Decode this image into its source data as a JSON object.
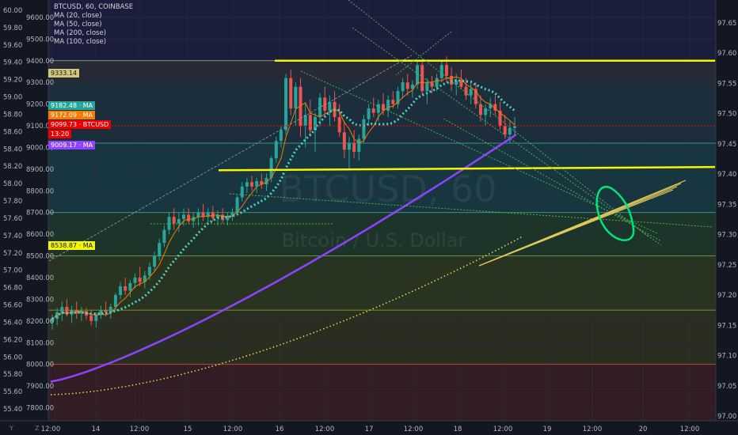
{
  "legend": {
    "title": "BTCUSD, 60, COINBASE",
    "ma_lines": [
      "MA (20, close)",
      "MA (50, close)",
      "MA (200, close)",
      "MA (100, close)"
    ]
  },
  "watermark": {
    "symbol": "BTCUSD, 60",
    "description": "Bitcoin / U.S. Dollar"
  },
  "colors": {
    "background": "#131722",
    "up_candle": "#26a69a",
    "down_candle": "#ef5350",
    "ma20": "#f57c00",
    "ma50": "#4dd0c8",
    "ma100": "#e8e04a",
    "ma200": "#8e44ff",
    "support_resistance": "#f5f50a",
    "trendlines": "#4caf50",
    "circle_annotation": "#00e676"
  },
  "tags": {
    "price_high": {
      "value": "9333.14",
      "color": "#d3c87a",
      "text_color": "#131722"
    },
    "ma50": {
      "value": "9182.48 · MA",
      "color": "#26a69a",
      "text_color": "#ffffff"
    },
    "ma20": {
      "value": "9172.09 · MA",
      "color": "#f57c00",
      "text_color": "#ffffff"
    },
    "last": {
      "value": "9099.73 · BTCUSD",
      "color": "#ef0000",
      "text_color": "#ffffff"
    },
    "countdown": {
      "value": "13:20",
      "color": "#ef0000",
      "text_color": "#ffffff"
    },
    "ma200": {
      "value": "9009.17 · MA",
      "color": "#8e44ff",
      "text_color": "#ffffff"
    },
    "ma100": {
      "value": "8538.87 · MA",
      "color": "#f5f50a",
      "text_color": "#131722"
    }
  },
  "pane_buttons": {
    "y": "Y",
    "z": "Z"
  },
  "chart_data": {
    "type": "candlestick",
    "title": "BTCUSD, 60, COINBASE",
    "price_axis_right": {
      "ticks": [
        "9600.00",
        "9500.00",
        "9400.00",
        "9300.00",
        "9200.00",
        "9100.00",
        "9000.00",
        "8900.00",
        "8800.00",
        "8700.00",
        "8600.00",
        "8500.00",
        "8400.00",
        "8300.00",
        "8200.00",
        "8100.00",
        "8000.00",
        "7900.00",
        "7800.00"
      ],
      "range": [
        7740,
        9680
      ]
    },
    "left_scale": {
      "ticks": [
        "60.00",
        "59.80",
        "59.60",
        "59.40",
        "59.20",
        "59.00",
        "58.80",
        "58.60",
        "58.40",
        "58.20",
        "58.00",
        "57.80",
        "57.60",
        "57.40",
        "57.20",
        "57.00",
        "56.80",
        "56.60",
        "56.40",
        "56.20",
        "56.00",
        "55.80",
        "55.60",
        "55.40"
      ]
    },
    "far_right_scale": {
      "ticks": [
        "97.65",
        "97.60",
        "97.55",
        "97.50",
        "97.45",
        "97.40",
        "97.35",
        "97.30",
        "97.25",
        "97.20",
        "97.15",
        "97.10",
        "97.05",
        "97.00"
      ]
    },
    "time_axis": {
      "ticks": [
        "12:00",
        "14",
        "12:00",
        "15",
        "12:00",
        "16",
        "12:00",
        "17",
        "12:00",
        "18",
        "12:00",
        "19",
        "12:00",
        "20",
        "12:00"
      ]
    },
    "ohlc": [
      [
        8195,
        8230,
        8160,
        8210
      ],
      [
        8210,
        8260,
        8180,
        8240
      ],
      [
        8240,
        8290,
        8200,
        8265
      ],
      [
        8265,
        8300,
        8220,
        8230
      ],
      [
        8230,
        8270,
        8190,
        8250
      ],
      [
        8250,
        8290,
        8210,
        8235
      ],
      [
        8235,
        8265,
        8200,
        8245
      ],
      [
        8245,
        8260,
        8205,
        8225
      ],
      [
        8225,
        8250,
        8180,
        8200
      ],
      [
        8200,
        8240,
        8170,
        8230
      ],
      [
        8230,
        8270,
        8210,
        8250
      ],
      [
        8250,
        8290,
        8220,
        8240
      ],
      [
        8240,
        8280,
        8210,
        8265
      ],
      [
        8265,
        8330,
        8250,
        8320
      ],
      [
        8320,
        8380,
        8300,
        8360
      ],
      [
        8360,
        8400,
        8320,
        8340
      ],
      [
        8340,
        8390,
        8310,
        8375
      ],
      [
        8375,
        8420,
        8350,
        8400
      ],
      [
        8400,
        8450,
        8360,
        8380
      ],
      [
        8380,
        8430,
        8350,
        8410
      ],
      [
        8410,
        8470,
        8390,
        8450
      ],
      [
        8450,
        8520,
        8430,
        8500
      ],
      [
        8500,
        8580,
        8480,
        8560
      ],
      [
        8560,
        8640,
        8540,
        8620
      ],
      [
        8620,
        8700,
        8600,
        8680
      ],
      [
        8680,
        8720,
        8620,
        8650
      ],
      [
        8650,
        8700,
        8610,
        8670
      ],
      [
        8670,
        8720,
        8640,
        8690
      ],
      [
        8690,
        8720,
        8650,
        8660
      ],
      [
        8660,
        8700,
        8630,
        8680
      ],
      [
        8680,
        8720,
        8640,
        8700
      ],
      [
        8700,
        8740,
        8660,
        8680
      ],
      [
        8680,
        8720,
        8650,
        8700
      ],
      [
        8700,
        8730,
        8660,
        8675
      ],
      [
        8675,
        8710,
        8640,
        8690
      ],
      [
        8690,
        8720,
        8650,
        8665
      ],
      [
        8665,
        8700,
        8640,
        8685
      ],
      [
        8685,
        8720,
        8660,
        8700
      ],
      [
        8700,
        8780,
        8690,
        8770
      ],
      [
        8770,
        8840,
        8750,
        8820
      ],
      [
        8820,
        8860,
        8790,
        8840
      ],
      [
        8840,
        8870,
        8800,
        8820
      ],
      [
        8820,
        8860,
        8790,
        8845
      ],
      [
        8845,
        8880,
        8810,
        8830
      ],
      [
        8830,
        8880,
        8800,
        8860
      ],
      [
        8860,
        8960,
        8840,
        8950
      ],
      [
        8950,
        9050,
        8930,
        9030
      ],
      [
        9030,
        9100,
        9000,
        9080
      ],
      [
        9080,
        9340,
        9060,
        9320
      ],
      [
        9320,
        9360,
        9150,
        9180
      ],
      [
        9180,
        9300,
        9100,
        9280
      ],
      [
        9280,
        9320,
        9050,
        9100
      ],
      [
        9100,
        9200,
        9000,
        9150
      ],
      [
        9150,
        9220,
        9050,
        9080
      ],
      [
        9080,
        9160,
        8980,
        9140
      ],
      [
        9140,
        9250,
        9100,
        9230
      ],
      [
        9230,
        9280,
        9150,
        9170
      ],
      [
        9170,
        9240,
        9100,
        9210
      ],
      [
        9210,
        9260,
        9120,
        9140
      ],
      [
        9140,
        9200,
        9050,
        9070
      ],
      [
        9070,
        9120,
        8950,
        8990
      ],
      [
        8990,
        9050,
        8900,
        9020
      ],
      [
        9020,
        9080,
        8950,
        8980
      ],
      [
        8980,
        9060,
        8940,
        9040
      ],
      [
        9040,
        9150,
        9020,
        9130
      ],
      [
        9130,
        9200,
        9100,
        9180
      ],
      [
        9180,
        9230,
        9140,
        9160
      ],
      [
        9160,
        9220,
        9120,
        9200
      ],
      [
        9200,
        9250,
        9150,
        9170
      ],
      [
        9170,
        9240,
        9140,
        9220
      ],
      [
        9220,
        9260,
        9180,
        9200
      ],
      [
        9200,
        9280,
        9180,
        9260
      ],
      [
        9260,
        9320,
        9230,
        9300
      ],
      [
        9300,
        9340,
        9240,
        9270
      ],
      [
        9270,
        9310,
        9230,
        9290
      ],
      [
        9290,
        9400,
        9270,
        9380
      ],
      [
        9380,
        9410,
        9240,
        9260
      ],
      [
        9260,
        9320,
        9200,
        9300
      ],
      [
        9300,
        9330,
        9250,
        9280
      ],
      [
        9280,
        9340,
        9260,
        9320
      ],
      [
        9320,
        9400,
        9300,
        9380
      ],
      [
        9380,
        9420,
        9300,
        9330
      ],
      [
        9330,
        9370,
        9260,
        9290
      ],
      [
        9290,
        9340,
        9240,
        9310
      ],
      [
        9310,
        9360,
        9270,
        9280
      ],
      [
        9280,
        9320,
        9220,
        9240
      ],
      [
        9240,
        9300,
        9200,
        9270
      ],
      [
        9270,
        9300,
        9180,
        9200
      ],
      [
        9200,
        9240,
        9120,
        9150
      ],
      [
        9150,
        9200,
        9100,
        9180
      ],
      [
        9180,
        9230,
        9140,
        9200
      ],
      [
        9200,
        9240,
        9150,
        9170
      ],
      [
        9170,
        9210,
        9080,
        9100
      ],
      [
        9100,
        9150,
        9040,
        9060
      ],
      [
        9060,
        9120,
        9020,
        9090
      ],
      [
        9090,
        9140,
        9050,
        9099.73
      ]
    ],
    "moving_averages": [
      {
        "name": "MA (20, close)",
        "last": 9172.09
      },
      {
        "name": "MA (50, close)",
        "last": 9182.48
      },
      {
        "name": "MA (200, close)",
        "last": 9009.17
      },
      {
        "name": "MA (100, close)",
        "last": 8538.87
      }
    ],
    "horizontal_levels": [
      9400,
      8895,
      9100
    ],
    "grid": true
  }
}
